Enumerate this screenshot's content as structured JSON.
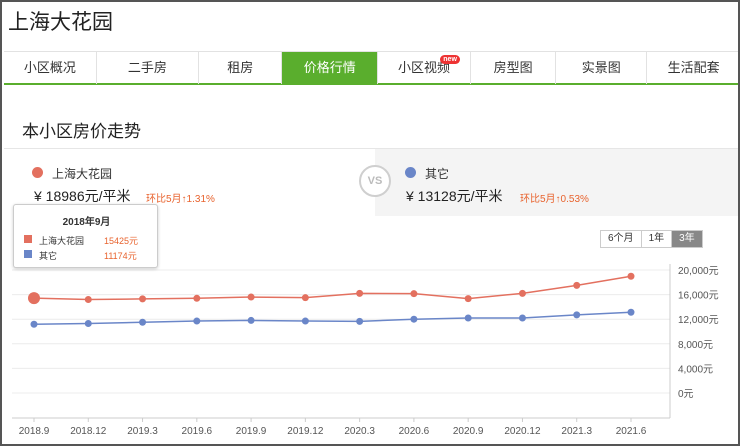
{
  "page": {
    "title": "上海大花园"
  },
  "nav": {
    "items": [
      {
        "label": "小区概况"
      },
      {
        "label": "二手房"
      },
      {
        "label": "租房"
      },
      {
        "label": "价格行情",
        "active": true
      },
      {
        "label": "小区视频",
        "badge": "new"
      },
      {
        "label": "房型图"
      },
      {
        "label": "实景图"
      },
      {
        "label": "生活配套"
      }
    ]
  },
  "section": {
    "title": "本小区房价走势"
  },
  "compare": {
    "left": {
      "name": "上海大花园",
      "price": "¥ 18986元/平米",
      "change": "环比5月↑1.31%",
      "color": "#e3705f"
    },
    "vs": "VS",
    "right": {
      "name": "其它",
      "price": "¥ 13128元/平米",
      "change": "环比5月↑0.53%",
      "color": "#6a86c8"
    }
  },
  "range": {
    "options": [
      "6个月",
      "1年",
      "3年"
    ],
    "selected": "3年"
  },
  "tooltip": {
    "title": "2018年9月",
    "rows": [
      {
        "name": "上海大花园",
        "value": "15425元",
        "color": "#e3705f"
      },
      {
        "name": "其它",
        "value": "11174元",
        "color": "#6a86c8"
      }
    ]
  },
  "chart_data": {
    "type": "line",
    "x": [
      "2018.9",
      "2018.12",
      "2019.3",
      "2019.6",
      "2019.9",
      "2019.12",
      "2020.3",
      "2020.6",
      "2020.9",
      "2020.12",
      "2021.3",
      "2021.6"
    ],
    "series": [
      {
        "name": "上海大花园",
        "color": "#e3705f",
        "values": [
          15425,
          15200,
          15300,
          15400,
          15600,
          15500,
          16200,
          16150,
          15350,
          16200,
          17500,
          18986
        ]
      },
      {
        "name": "其它",
        "color": "#6a86c8",
        "values": [
          11174,
          11300,
          11500,
          11700,
          11800,
          11700,
          11650,
          12000,
          12200,
          12200,
          12700,
          13128
        ]
      }
    ],
    "yticks": [
      "20,000元",
      "16,000元",
      "12,000元",
      "8,000元",
      "4,000元",
      "0元"
    ],
    "ylim": [
      0,
      20000
    ],
    "grid": true,
    "highlight_index": 0
  }
}
